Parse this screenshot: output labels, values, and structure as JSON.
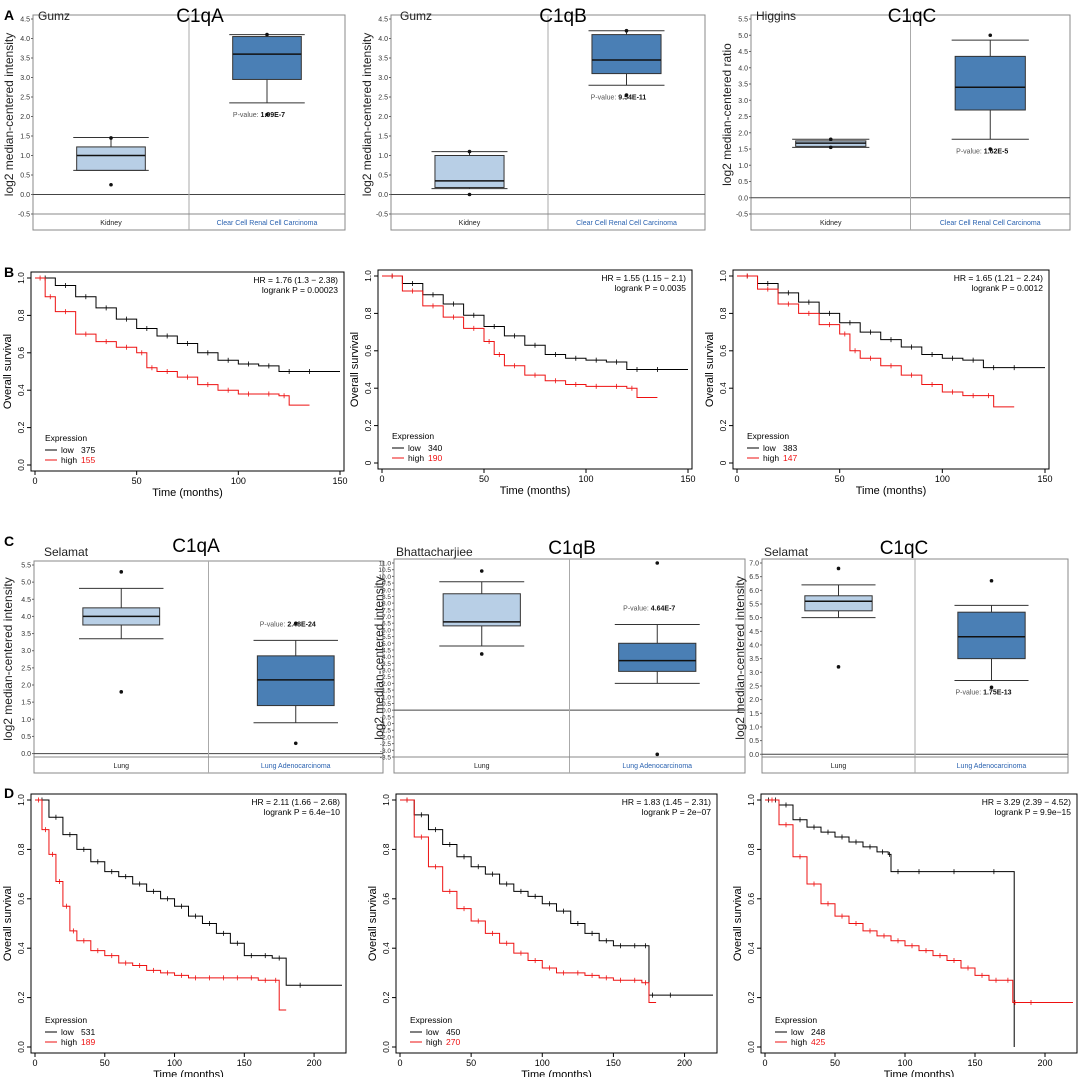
{
  "figure": {
    "panel_letters": [
      "A",
      "B",
      "C",
      "D"
    ],
    "oncomine_pvalue_label": "P-value:",
    "km_expression_title": "Expression",
    "km_xlabel": "Time (months)",
    "km_ylabel": "Overall survival",
    "km_low_label": "low",
    "km_high_label": "high",
    "colors": {
      "normal_box": "#b8cfe6",
      "tumor_box": "#4a7fb5",
      "km_low": "#000000",
      "km_high": "#ee1111",
      "tumor_label": "#2a62b0"
    }
  },
  "chart_data": [
    {
      "panel": "A",
      "type": "box",
      "dataset": "Gumz",
      "gene": "C1qA",
      "ylabel": "log2 median-centered intensity",
      "ylim": [
        -0.5,
        4.5
      ],
      "yticks": [
        "-0.5",
        "0.0",
        "0.5",
        "1.0",
        "1.5",
        "2.0",
        "2.5",
        "3.0",
        "3.5",
        "4.0",
        "4.5"
      ],
      "categories": [
        "Kidney",
        "Clear Cell Renal Cell Carcinoma"
      ],
      "pvalue": "1.09E-7",
      "boxes": [
        {
          "min": 0.62,
          "q1": 0.62,
          "median": 1.0,
          "q3": 1.22,
          "max": 1.46,
          "outliers": [
            0.25,
            1.45
          ]
        },
        {
          "min": 2.35,
          "q1": 2.95,
          "median": 3.6,
          "q3": 4.05,
          "max": 4.1,
          "outliers": [
            2.05,
            4.1
          ]
        }
      ]
    },
    {
      "panel": "A",
      "type": "box",
      "dataset": "Gumz",
      "gene": "C1qB",
      "ylabel": "log2 median-centered intensity",
      "ylim": [
        -0.5,
        4.5
      ],
      "yticks": [
        "-0.5",
        "0.0",
        "0.5",
        "1.0",
        "1.5",
        "2.0",
        "2.5",
        "3.0",
        "3.5",
        "4.0",
        "4.5"
      ],
      "categories": [
        "Kidney",
        "Clear Cell Renal Cell Carcinoma"
      ],
      "pvalue": "9.54E-11",
      "boxes": [
        {
          "min": 0.15,
          "q1": 0.18,
          "median": 0.35,
          "q3": 1.0,
          "max": 1.1,
          "outliers": [
            0.0,
            1.1
          ]
        },
        {
          "min": 2.8,
          "q1": 3.1,
          "median": 3.45,
          "q3": 4.1,
          "max": 4.2,
          "outliers": [
            2.55,
            4.2
          ]
        }
      ]
    },
    {
      "panel": "A",
      "type": "box",
      "dataset": "Higgins",
      "gene": "C1qC",
      "ylabel": "log2 median-centered ratio",
      "ylim": [
        -0.5,
        5.5
      ],
      "yticks": [
        "-0.5",
        "0.0",
        "0.5",
        "1.0",
        "1.5",
        "2.0",
        "2.5",
        "3.0",
        "3.5",
        "4.0",
        "4.5",
        "5.0",
        "5.5"
      ],
      "categories": [
        "Kidney",
        "Clear Cell Renal Cell Carcinoma"
      ],
      "pvalue": "1.62E-5",
      "boxes": [
        {
          "min": 1.55,
          "q1": 1.58,
          "median": 1.68,
          "q3": 1.75,
          "max": 1.8,
          "outliers": [
            1.55,
            1.8
          ]
        },
        {
          "min": 1.8,
          "q1": 2.7,
          "median": 3.4,
          "q3": 4.35,
          "max": 4.85,
          "outliers": [
            1.5,
            5.0
          ]
        }
      ]
    },
    {
      "panel": "B",
      "type": "line",
      "subtype": "kaplan-meier",
      "hr": "HR = 1.76 (1.3 − 2.38)",
      "logrank": "logrank P = 0.00023",
      "low_n": "375",
      "high_n": "155",
      "xlim": [
        0,
        150
      ],
      "xticks": [
        "0",
        "50",
        "100",
        "150"
      ],
      "ylim": [
        0,
        1
      ],
      "yticks": [
        "0.0",
        "0.2",
        "0.4",
        "0.6",
        "0.8",
        "1.0"
      ],
      "low": {
        "x": [
          0,
          10,
          20,
          30,
          40,
          50,
          60,
          70,
          80,
          90,
          100,
          110,
          120,
          130,
          140,
          150
        ],
        "y": [
          1,
          0.96,
          0.9,
          0.84,
          0.78,
          0.73,
          0.69,
          0.65,
          0.6,
          0.56,
          0.54,
          0.53,
          0.5,
          0.5,
          0.5,
          0.5
        ]
      },
      "high": {
        "x": [
          0,
          5,
          10,
          20,
          30,
          40,
          50,
          55,
          60,
          70,
          80,
          90,
          100,
          110,
          120,
          125,
          135
        ],
        "y": [
          1,
          0.9,
          0.82,
          0.7,
          0.66,
          0.63,
          0.6,
          0.52,
          0.5,
          0.47,
          0.43,
          0.4,
          0.38,
          0.38,
          0.37,
          0.32,
          0.32
        ]
      }
    },
    {
      "panel": "B",
      "type": "line",
      "subtype": "kaplan-meier",
      "hr": "HR = 1.55 (1.15 − 2.1)",
      "logrank": "logrank P = 0.0035",
      "low_n": "340",
      "high_n": "190",
      "xlim": [
        0,
        150
      ],
      "xticks": [
        "0",
        "50",
        "100",
        "150"
      ],
      "ylim": [
        0,
        1
      ],
      "yticks": [
        "0",
        "0.2",
        "0.4",
        "0.6",
        "0.8",
        "1.0"
      ],
      "low": {
        "x": [
          0,
          10,
          20,
          30,
          40,
          50,
          60,
          70,
          80,
          90,
          100,
          110,
          120,
          130,
          140,
          150
        ],
        "y": [
          1,
          0.96,
          0.9,
          0.85,
          0.79,
          0.73,
          0.68,
          0.63,
          0.58,
          0.56,
          0.55,
          0.54,
          0.5,
          0.5,
          0.5,
          0.5
        ]
      },
      "high": {
        "x": [
          0,
          10,
          20,
          30,
          40,
          50,
          55,
          60,
          70,
          80,
          90,
          100,
          110,
          120,
          125,
          135
        ],
        "y": [
          1,
          0.92,
          0.84,
          0.78,
          0.72,
          0.65,
          0.58,
          0.52,
          0.47,
          0.44,
          0.42,
          0.41,
          0.41,
          0.4,
          0.35,
          0.35
        ]
      }
    },
    {
      "panel": "B",
      "type": "line",
      "subtype": "kaplan-meier",
      "hr": "HR = 1.65 (1.21 − 2.24)",
      "logrank": "logrank P = 0.0012",
      "low_n": "383",
      "high_n": "147",
      "xlim": [
        0,
        150
      ],
      "xticks": [
        "0",
        "50",
        "100",
        "150"
      ],
      "ylim": [
        0,
        1
      ],
      "yticks": [
        "0",
        "0.2",
        "0.4",
        "0.6",
        "0.8",
        "1.0"
      ],
      "low": {
        "x": [
          0,
          10,
          20,
          30,
          40,
          50,
          60,
          70,
          80,
          90,
          100,
          110,
          120,
          130,
          140,
          150
        ],
        "y": [
          1,
          0.96,
          0.91,
          0.86,
          0.8,
          0.75,
          0.7,
          0.66,
          0.62,
          0.58,
          0.56,
          0.55,
          0.51,
          0.51,
          0.51,
          0.51
        ]
      },
      "high": {
        "x": [
          0,
          10,
          20,
          30,
          40,
          50,
          55,
          60,
          70,
          80,
          90,
          100,
          110,
          120,
          125,
          135
        ],
        "y": [
          1,
          0.93,
          0.85,
          0.8,
          0.74,
          0.69,
          0.6,
          0.56,
          0.52,
          0.47,
          0.42,
          0.38,
          0.36,
          0.36,
          0.3,
          0.3
        ]
      }
    },
    {
      "panel": "C",
      "type": "box",
      "dataset": "Selamat",
      "gene": "C1qA",
      "ylabel": "log2 median-centered intensity",
      "ylim": [
        -0.1,
        5.5
      ],
      "yticks": [
        "0.0",
        "0.5",
        "1.0",
        "1.5",
        "2.0",
        "2.5",
        "3.0",
        "3.5",
        "4.0",
        "4.5",
        "5.0",
        "5.5"
      ],
      "categories": [
        "Lung",
        "Lung Adenocarcinoma"
      ],
      "pvalue": "2.48E-24",
      "boxes": [
        {
          "min": 3.35,
          "q1": 3.75,
          "median": 4.0,
          "q3": 4.25,
          "max": 4.82,
          "outliers": [
            1.8,
            5.3
          ]
        },
        {
          "min": 0.9,
          "q1": 1.4,
          "median": 2.15,
          "q3": 2.85,
          "max": 3.3,
          "outliers": [
            0.3,
            3.8
          ]
        }
      ]
    },
    {
      "panel": "C",
      "type": "box",
      "dataset": "Bhattacharjiee",
      "gene": "C1qB",
      "ylabel": "log2 median-centered intensity",
      "ylim": [
        -3.5,
        11.0
      ],
      "yticks": [
        "-3.5",
        "-3.0",
        "-2.5",
        "-2.0",
        "-1.5",
        "-1.0",
        "-0.5",
        "0.0",
        "0.5",
        "1.0",
        "1.5",
        "2.0",
        "2.5",
        "3.0",
        "3.5",
        "4.0",
        "4.5",
        "5.0",
        "5.5",
        "6.0",
        "6.5",
        "7.0",
        "7.5",
        "8.0",
        "8.5",
        "9.0",
        "9.5",
        "10.0",
        "10.5",
        "11.0"
      ],
      "categories": [
        "Lung",
        "Lung Adenocarcinoma"
      ],
      "pvalue": "4.64E-7",
      "boxes": [
        {
          "min": 4.8,
          "q1": 6.3,
          "median": 6.6,
          "q3": 8.7,
          "max": 9.6,
          "outliers": [
            4.2,
            10.4
          ]
        },
        {
          "min": 2.0,
          "q1": 2.9,
          "median": 3.7,
          "q3": 5.0,
          "max": 6.4,
          "outliers": [
            -3.3,
            11.0
          ]
        }
      ]
    },
    {
      "panel": "C",
      "type": "box",
      "dataset": "Selamat",
      "gene": "C1qC",
      "ylabel": "log2 median-centered intensity",
      "ylim": [
        -0.1,
        7.0
      ],
      "yticks": [
        "0.0",
        "0.5",
        "1.0",
        "1.5",
        "2.0",
        "2.5",
        "3.0",
        "3.5",
        "4.0",
        "4.5",
        "5.0",
        "5.5",
        "6.0",
        "6.5",
        "7.0"
      ],
      "categories": [
        "Lung",
        "Lung Adenocarcinoma"
      ],
      "pvalue": "1.75E-13",
      "boxes": [
        {
          "min": 5.0,
          "q1": 5.25,
          "median": 5.6,
          "q3": 5.8,
          "max": 6.2,
          "outliers": [
            3.2,
            6.8
          ]
        },
        {
          "min": 2.7,
          "q1": 3.5,
          "median": 4.3,
          "q3": 5.2,
          "max": 5.45,
          "outliers": [
            2.45,
            6.35
          ]
        }
      ]
    },
    {
      "panel": "D",
      "type": "line",
      "subtype": "kaplan-meier",
      "hr": "HR = 2.11 (1.66 − 2.68)",
      "logrank": "logrank P = 6.4e−10",
      "low_n": "531",
      "high_n": "189",
      "xlim": [
        0,
        220
      ],
      "xticks": [
        "0",
        "50",
        "100",
        "150",
        "200"
      ],
      "ylim": [
        0,
        1
      ],
      "yticks": [
        "0.0",
        "0.2",
        "0.4",
        "0.6",
        "0.8",
        "1.0"
      ],
      "low": {
        "x": [
          0,
          10,
          20,
          30,
          40,
          50,
          60,
          70,
          80,
          90,
          100,
          110,
          120,
          130,
          140,
          150,
          160,
          170,
          180,
          200,
          220
        ],
        "y": [
          1,
          0.93,
          0.86,
          0.8,
          0.75,
          0.71,
          0.69,
          0.66,
          0.63,
          0.6,
          0.57,
          0.53,
          0.5,
          0.46,
          0.42,
          0.37,
          0.37,
          0.36,
          0.25,
          0.25,
          0.25
        ]
      },
      "high": {
        "x": [
          0,
          5,
          10,
          15,
          20,
          25,
          30,
          40,
          50,
          60,
          70,
          80,
          90,
          100,
          110,
          120,
          130,
          140,
          150,
          160,
          170,
          175,
          180
        ],
        "y": [
          1,
          0.88,
          0.78,
          0.67,
          0.57,
          0.47,
          0.43,
          0.39,
          0.37,
          0.34,
          0.33,
          0.31,
          0.3,
          0.29,
          0.28,
          0.28,
          0.28,
          0.28,
          0.28,
          0.27,
          0.27,
          0.15,
          0.15
        ]
      }
    },
    {
      "panel": "D",
      "type": "line",
      "subtype": "kaplan-meier",
      "hr": "HR = 1.83 (1.45 − 2.31)",
      "logrank": "logrank P = 2e−07",
      "low_n": "450",
      "high_n": "270",
      "xlim": [
        0,
        220
      ],
      "xticks": [
        "0",
        "50",
        "100",
        "150",
        "200"
      ],
      "ylim": [
        0,
        1
      ],
      "yticks": [
        "0.0",
        "0.2",
        "0.4",
        "0.6",
        "0.8",
        "1.0"
      ],
      "low": {
        "x": [
          0,
          10,
          20,
          30,
          40,
          50,
          60,
          70,
          80,
          90,
          100,
          110,
          120,
          130,
          140,
          150,
          160,
          170,
          175,
          180,
          200,
          220
        ],
        "y": [
          1,
          0.94,
          0.88,
          0.82,
          0.77,
          0.73,
          0.7,
          0.66,
          0.63,
          0.61,
          0.58,
          0.55,
          0.5,
          0.46,
          0.43,
          0.41,
          0.41,
          0.41,
          0.21,
          0.21,
          0.21,
          0.21
        ]
      },
      "high": {
        "x": [
          0,
          10,
          20,
          30,
          40,
          50,
          60,
          70,
          80,
          90,
          100,
          110,
          120,
          130,
          140,
          150,
          160,
          170,
          175,
          180
        ],
        "y": [
          1,
          0.85,
          0.73,
          0.63,
          0.56,
          0.51,
          0.46,
          0.42,
          0.38,
          0.35,
          0.32,
          0.3,
          0.3,
          0.29,
          0.28,
          0.27,
          0.27,
          0.26,
          0.18,
          0.18
        ]
      }
    },
    {
      "panel": "D",
      "type": "line",
      "subtype": "kaplan-meier",
      "hr": "HR = 3.29 (2.39 − 4.52)",
      "logrank": "logrank P = 9.9e−15",
      "low_n": "248",
      "high_n": "425",
      "xlim": [
        0,
        220
      ],
      "xticks": [
        "0",
        "50",
        "100",
        "150",
        "200"
      ],
      "ylim": [
        0,
        1
      ],
      "yticks": [
        "0.0",
        "0.2",
        "0.4",
        "0.6",
        "0.8",
        "1.0"
      ],
      "low": {
        "x": [
          0,
          5,
          10,
          20,
          30,
          40,
          50,
          60,
          70,
          80,
          88,
          90,
          100,
          120,
          150,
          177,
          178
        ],
        "y": [
          1,
          1,
          0.98,
          0.92,
          0.89,
          0.87,
          0.85,
          0.83,
          0.81,
          0.79,
          0.78,
          0.71,
          0.71,
          0.71,
          0.71,
          0.71,
          0
        ]
      },
      "high": {
        "x": [
          0,
          10,
          20,
          30,
          40,
          50,
          60,
          70,
          80,
          90,
          100,
          110,
          120,
          130,
          140,
          150,
          160,
          170,
          177,
          180,
          200,
          220
        ],
        "y": [
          1,
          0.9,
          0.77,
          0.66,
          0.58,
          0.53,
          0.5,
          0.47,
          0.45,
          0.43,
          0.41,
          0.39,
          0.37,
          0.35,
          0.32,
          0.29,
          0.27,
          0.27,
          0.18,
          0.18,
          0.18,
          0.18
        ]
      }
    }
  ]
}
